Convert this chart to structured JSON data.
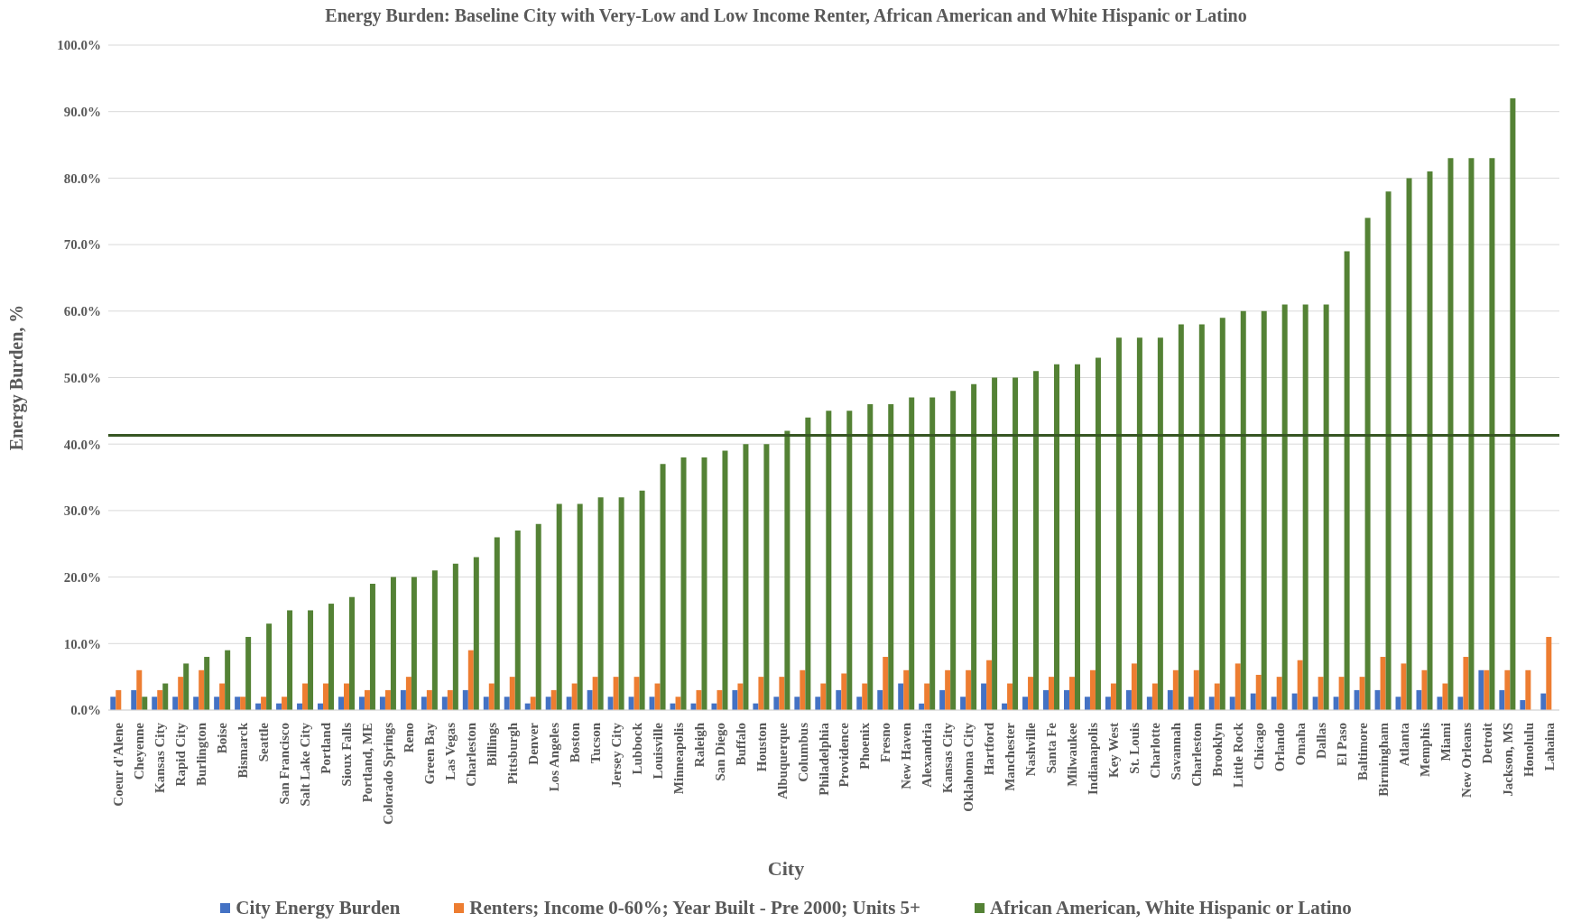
{
  "chart_data": {
    "type": "bar",
    "title": "Energy Burden: Baseline City with Very-Low and Low Income Renter, African American and White Hispanic or Latino",
    "xlabel": "City",
    "ylabel": "Energy Burden, %",
    "categories": [
      "Coeur d'Alene",
      "Cheyenne",
      "Kansas City",
      "Rapid City",
      "Burlington",
      "Boise",
      "Bismarck",
      "Seattle",
      "San Francisco",
      "Salt Lake City",
      "Portland",
      "Sioux Falls",
      "Portland, ME",
      "Colorado Springs",
      "Reno",
      "Green Bay",
      "Las Vegas",
      "Charleston",
      "Billings",
      "Pittsburgh",
      "Denver",
      "Los Angeles",
      "Boston",
      "Tucson",
      "Jersey City",
      "Lubbock",
      "Louisville",
      "Minneapolis",
      "Raleigh",
      "San Diego",
      "Buffalo",
      "Houston",
      "Albuquerque",
      "Columbus",
      "Philadelphia",
      "Providence",
      "Phoenix",
      "Fresno",
      "New Haven",
      "Alexandria",
      "Kansas City",
      "Oklahoma City",
      "Hartford",
      "Manchester",
      "Nashville",
      "Santa Fe",
      "Milwaukee",
      "Indianapolis",
      "Key West",
      "St. Louis",
      "Charlotte",
      "Savannah",
      "Charleston",
      "Brooklyn",
      "Little Rock",
      "Chicago",
      "Orlando",
      "Omaha",
      "Dallas",
      "El Paso",
      "Baltimore",
      "Birmingham",
      "Atlanta",
      "Memphis",
      "Miami",
      "New Orleans",
      "Detroit",
      "Jackson, MS",
      "Honolulu",
      "Lahaina"
    ],
    "series": [
      {
        "name": "City Energy Burden",
        "color": "#4472c4",
        "values": [
          2,
          3,
          2,
          2,
          2,
          2,
          2,
          1,
          1,
          1,
          1,
          2,
          2,
          2,
          3,
          2,
          2,
          3,
          2,
          2,
          1,
          2,
          2,
          3,
          2,
          2,
          2,
          1,
          1,
          1,
          3,
          1,
          2,
          2,
          2,
          3,
          2,
          3,
          4,
          1,
          3,
          2,
          4,
          1,
          2,
          3,
          3,
          2,
          2,
          3,
          2,
          3,
          2,
          2,
          2,
          2.5,
          2,
          2.5,
          2,
          2,
          3,
          3,
          2,
          3,
          2,
          2,
          6,
          3,
          1.5,
          2.5
        ]
      },
      {
        "name": "Renters; Income 0-60%; Year Built - Pre 2000; Units 5+",
        "color": "#ed7d31",
        "values": [
          3,
          6,
          3,
          5,
          6,
          4,
          2,
          2,
          2,
          4,
          4,
          4,
          3,
          3,
          5,
          3,
          3,
          9,
          4,
          5,
          2,
          3,
          4,
          5,
          5,
          5,
          4,
          2,
          3,
          3,
          4,
          5,
          5,
          6,
          4,
          5.5,
          4,
          8,
          6,
          4,
          6,
          6,
          7.5,
          4,
          5,
          5,
          5,
          6,
          4,
          7,
          4,
          6,
          6,
          4,
          7,
          5.3,
          5,
          7.5,
          5,
          5,
          5,
          8,
          7,
          6,
          4,
          8,
          6,
          6,
          6,
          11
        ]
      },
      {
        "name": "African American, White Hispanic or Latino",
        "color": "#548235",
        "values": [
          null,
          2,
          4,
          7,
          8,
          9,
          11,
          13,
          15,
          15,
          16,
          17,
          19,
          20,
          20,
          21,
          22,
          23,
          26,
          27,
          28,
          31,
          31,
          32,
          32,
          33,
          37,
          38,
          38,
          39,
          40,
          40,
          42,
          44,
          45,
          45,
          46,
          46,
          47,
          47,
          48,
          49,
          50,
          50,
          51,
          52,
          52,
          53,
          56,
          56,
          56,
          58,
          58,
          59,
          60,
          60,
          61,
          61,
          61,
          69,
          74,
          78,
          80,
          81,
          83,
          83,
          83,
          92,
          null,
          null
        ]
      }
    ],
    "ylim": [
      0,
      100
    ],
    "yticks": [
      {
        "value": 0,
        "label": "0.0%"
      },
      {
        "value": 10,
        "label": "10.0%"
      },
      {
        "value": 20,
        "label": "20.0%"
      },
      {
        "value": 30,
        "label": "30.0%"
      },
      {
        "value": 40,
        "label": "40.0%"
      },
      {
        "value": 50,
        "label": "50.0%"
      },
      {
        "value": 60,
        "label": "60.0%"
      },
      {
        "value": 70,
        "label": "70.0%"
      },
      {
        "value": 80,
        "label": "80.0%"
      },
      {
        "value": 90,
        "label": "90.0%"
      },
      {
        "value": 100,
        "label": "100.0%"
      }
    ],
    "grid": "y",
    "legend": "bottom",
    "ref_lines": [
      {
        "axis": "y",
        "value": 41.3,
        "color": "#375623"
      }
    ]
  }
}
